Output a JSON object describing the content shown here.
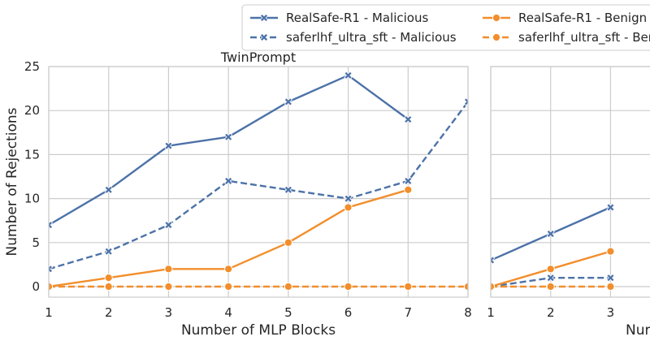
{
  "chart_data": [
    {
      "type": "line",
      "title": "TwinPrompt",
      "xlabel": "Number of MLP Blocks",
      "ylabel": "Number of Rejections",
      "x": [
        1,
        2,
        3,
        4,
        5,
        6,
        7,
        8
      ],
      "xlim": [
        1,
        8
      ],
      "ylim": [
        -1.2,
        25
      ],
      "yticks": [
        0,
        5,
        10,
        15,
        20,
        25
      ],
      "grid": true,
      "series": [
        {
          "name": "RealSafe-R1 - Malicious",
          "color": "#4c72a8",
          "dash": "solid",
          "marker": "x",
          "values": [
            7,
            11,
            16,
            17,
            21,
            24,
            19,
            null
          ]
        },
        {
          "name": "saferlhf_ultra_sft - Malicious",
          "color": "#4c72a8",
          "dash": "dashed",
          "marker": "x",
          "values": [
            2,
            4,
            7,
            12,
            11,
            10,
            12,
            21
          ]
        },
        {
          "name": "RealSafe-R1 - Benign",
          "color": "#f28e2b",
          "dash": "solid",
          "marker": "circle",
          "values": [
            0,
            1,
            2,
            2,
            5,
            9,
            11,
            null
          ]
        },
        {
          "name": "saferlhf_ultra_sft - Benign",
          "color": "#f28e2b",
          "dash": "dashed",
          "marker": "circle",
          "values": [
            0,
            0,
            0,
            0,
            0,
            0,
            0,
            0
          ]
        }
      ]
    },
    {
      "type": "line",
      "title": "",
      "xlabel": "Nur",
      "ylabel": "",
      "x": [
        1,
        2,
        3
      ],
      "xlim": [
        1,
        8
      ],
      "ylim": [
        -1.2,
        25
      ],
      "grid": true,
      "series": [
        {
          "name": "RealSafe-R1 - Malicious",
          "color": "#4c72a8",
          "dash": "solid",
          "marker": "x",
          "values": [
            3,
            6,
            9
          ]
        },
        {
          "name": "saferlhf_ultra_sft - Malicious",
          "color": "#4c72a8",
          "dash": "dashed",
          "marker": "x",
          "values": [
            0,
            1,
            1
          ]
        },
        {
          "name": "RealSafe-R1 - Benign",
          "color": "#f28e2b",
          "dash": "solid",
          "marker": "circle",
          "values": [
            0,
            2,
            4
          ]
        },
        {
          "name": "saferlhf_ultra_sft - Benign",
          "color": "#f28e2b",
          "dash": "dashed",
          "marker": "circle",
          "values": [
            0,
            0,
            0
          ]
        }
      ]
    }
  ],
  "legend": {
    "placement": "top-right",
    "entries": [
      {
        "label": "RealSafe-R1 - Malicious",
        "color": "#4c72a8",
        "dash": "solid",
        "marker": "x"
      },
      {
        "label": "RealSafe-R1 - Benign",
        "color": "#f28e2b",
        "dash": "solid",
        "marker": "circle"
      },
      {
        "label": "saferlhf_ultra_sft - Malicious",
        "color": "#4c72a8",
        "dash": "dashed",
        "marker": "x"
      },
      {
        "label": "saferlhf_ultra_sft - Ber",
        "color": "#f28e2b",
        "dash": "dashed",
        "marker": "circle"
      }
    ]
  }
}
